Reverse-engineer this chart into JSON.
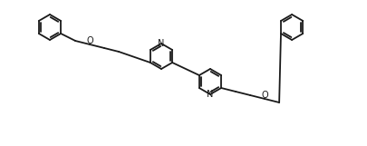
{
  "bg_color": "#ffffff",
  "line_color": "#1a1a1a",
  "lw": 1.3,
  "figw": 4.06,
  "figh": 1.61,
  "dpi": 100,
  "atoms": {
    "N1_label": "N",
    "N2_label": "N",
    "O1_label": "O",
    "O2_label": "O"
  }
}
